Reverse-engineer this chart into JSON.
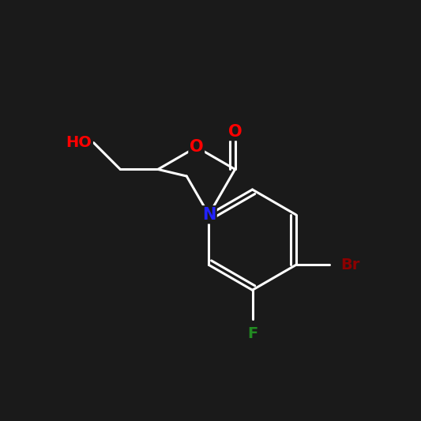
{
  "background_color": "#1a1a1a",
  "bond_color": "white",
  "atom_colors": {
    "O": "#ff0000",
    "N": "#2222ff",
    "F": "#228B22",
    "Br": "#8B0000",
    "HO": "#ff0000",
    "C": "white"
  },
  "figsize": [
    5.33,
    5.33
  ],
  "dpi": 100
}
